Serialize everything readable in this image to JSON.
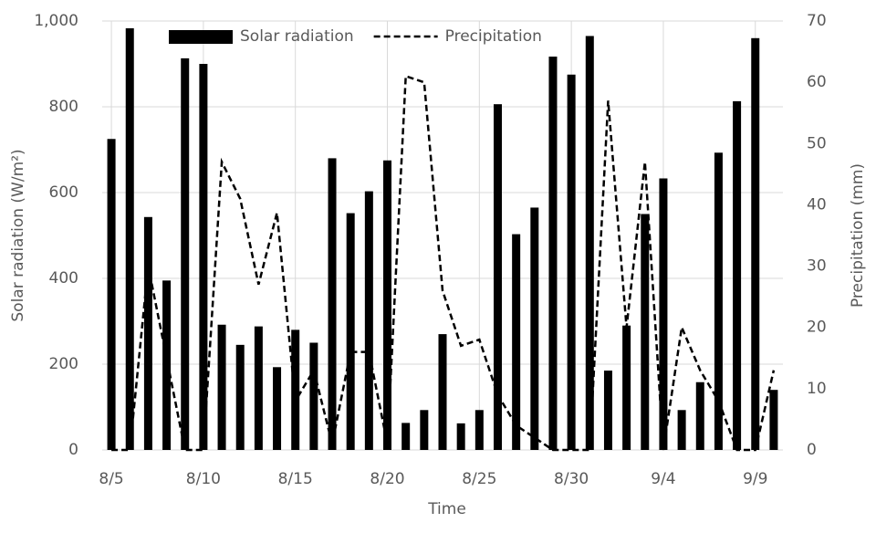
{
  "chart_data": {
    "type": "bar_line",
    "xlabel": "Time",
    "ylabel": "Solar radiation (W/m²)",
    "y2label": "Precipitation (mm)",
    "categories": [
      "8/5",
      null,
      null,
      null,
      null,
      "8/10",
      null,
      null,
      null,
      null,
      "8/15",
      null,
      null,
      null,
      null,
      "8/20",
      null,
      null,
      null,
      null,
      "8/25",
      null,
      null,
      null,
      null,
      "8/30",
      null,
      null,
      null,
      null,
      "9/4",
      null,
      null,
      null,
      null,
      "9/9",
      null
    ],
    "series": [
      {
        "name": "Solar radiation",
        "type": "bar",
        "color": "#000000",
        "values": [
          725,
          983,
          543,
          395,
          913,
          900,
          292,
          245,
          288,
          193,
          280,
          250,
          680,
          552,
          603,
          675,
          63,
          93,
          270,
          62,
          93,
          806,
          503,
          565,
          917,
          875,
          965,
          185,
          290,
          550,
          633,
          93,
          158,
          693,
          813,
          960,
          140
        ]
      },
      {
        "name": "Precipitation",
        "type": "line",
        "axis": "y2",
        "color": "#000000",
        "dashed": true,
        "values": [
          0,
          0,
          30,
          15,
          0,
          0,
          47,
          41,
          27,
          38.7,
          8,
          13,
          1,
          16,
          16,
          1,
          61,
          60,
          26,
          17,
          18,
          9,
          4,
          2,
          0,
          0,
          0,
          57,
          20,
          47,
          0,
          20,
          13,
          8,
          0,
          0,
          13
        ]
      }
    ],
    "ylim": [
      0,
      1000
    ],
    "yticks": [
      0,
      200,
      400,
      600,
      800,
      {
        "value": 1000,
        "label": "1,000"
      }
    ],
    "y2lim": [
      0,
      70
    ],
    "y2ticks": [
      0,
      10,
      20,
      30,
      40,
      50,
      60,
      70
    ],
    "grid": true,
    "legend": "top"
  }
}
